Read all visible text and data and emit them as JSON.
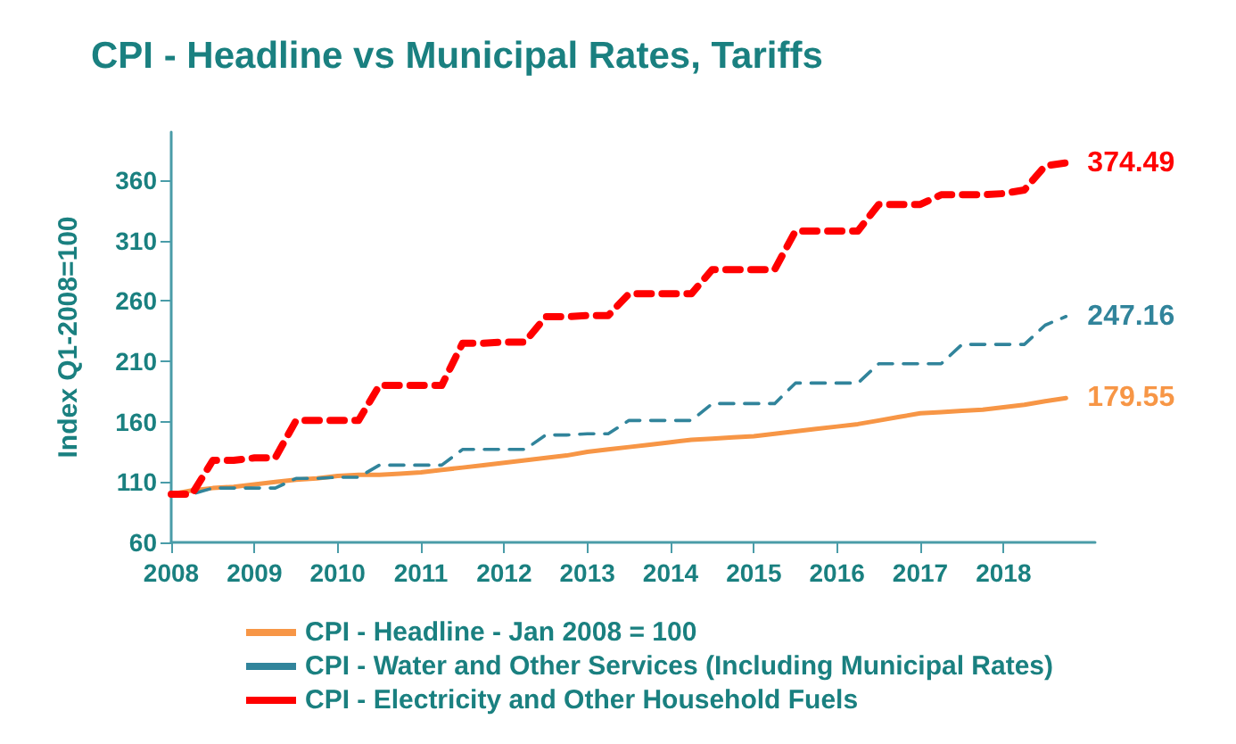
{
  "chart_data": {
    "type": "line",
    "title": "CPI - Headline vs Municipal Rates, Tariffs",
    "ylabel": "Index Q1-2008=100",
    "x": [
      2008,
      2008.25,
      2008.5,
      2008.75,
      2009,
      2009.25,
      2009.5,
      2009.75,
      2010,
      2010.25,
      2010.5,
      2010.75,
      2011,
      2011.25,
      2011.5,
      2011.75,
      2012,
      2012.25,
      2012.5,
      2012.75,
      2013,
      2013.25,
      2013.5,
      2013.75,
      2014,
      2014.25,
      2014.5,
      2014.75,
      2015,
      2015.25,
      2015.5,
      2015.75,
      2016,
      2016.25,
      2016.5,
      2016.75,
      2017,
      2017.25,
      2017.5,
      2017.75,
      2018,
      2018.25,
      2018.5,
      2018.75
    ],
    "series": [
      {
        "name": "CPI - Headline - Jan 2008 = 100",
        "color": "#f79646",
        "line_style": "solid",
        "values": [
          100,
          103,
          105,
          106,
          108,
          110,
          112,
          113,
          115,
          116,
          116,
          117,
          118,
          120,
          122,
          124,
          126,
          128,
          130,
          132,
          135,
          137,
          139,
          141,
          143,
          145,
          146,
          147,
          148,
          150,
          152,
          154,
          156,
          158,
          161,
          164,
          167,
          168,
          169,
          170,
          172,
          174,
          177,
          179.55
        ],
        "value_labels": [
          null,
          null,
          null,
          null,
          null,
          null,
          null,
          null,
          null,
          null,
          null,
          null,
          null,
          null,
          null,
          null,
          null,
          null,
          null,
          null,
          null,
          null,
          null,
          null,
          null,
          null,
          null,
          null,
          null,
          null,
          null,
          null,
          null,
          null,
          null,
          null,
          null,
          null,
          null,
          null,
          null,
          null,
          null,
          "179.55"
        ]
      },
      {
        "name": "CPI - Water and Other Services (Including Municipal Rates)",
        "color": "#31849b",
        "line_style": "dashed",
        "values": [
          100,
          100,
          105,
          105,
          105,
          105,
          113,
          113,
          114,
          114,
          124,
          124,
          124,
          124,
          137,
          137,
          137,
          137,
          149,
          149,
          150,
          150,
          161,
          161,
          161,
          161,
          175,
          175,
          175,
          175,
          192,
          192,
          192,
          192,
          208,
          208,
          208,
          208,
          224,
          224,
          224,
          224,
          240,
          247.16
        ],
        "value_labels": [
          null,
          null,
          null,
          null,
          null,
          null,
          null,
          null,
          null,
          null,
          null,
          null,
          null,
          null,
          null,
          null,
          null,
          null,
          null,
          null,
          null,
          null,
          null,
          null,
          null,
          null,
          null,
          null,
          null,
          null,
          null,
          null,
          null,
          null,
          null,
          null,
          null,
          null,
          null,
          null,
          null,
          null,
          null,
          "247.16"
        ]
      },
      {
        "name": "CPI - Electricity and Other Household Fuels",
        "color": "#ff0000",
        "line_style": "dashed",
        "values": [
          100,
          100,
          128,
          128,
          130,
          130,
          161,
          161,
          161,
          161,
          190,
          190,
          190,
          190,
          225,
          225,
          226,
          226,
          247,
          247,
          248,
          248,
          266,
          266,
          266,
          266,
          286,
          286,
          286,
          286,
          318,
          318,
          318,
          318,
          340,
          340,
          340,
          348,
          348,
          348,
          349,
          352,
          372,
          374.49
        ],
        "value_labels": [
          null,
          null,
          null,
          null,
          null,
          null,
          null,
          null,
          null,
          null,
          null,
          null,
          null,
          null,
          null,
          null,
          null,
          null,
          null,
          null,
          null,
          null,
          null,
          null,
          null,
          null,
          null,
          null,
          null,
          null,
          null,
          null,
          null,
          null,
          null,
          null,
          null,
          null,
          null,
          null,
          null,
          null,
          null,
          "374.49"
        ]
      }
    ],
    "xlim": [
      2008,
      2019.1
    ],
    "xticks": [
      2008,
      2009,
      2010,
      2011,
      2012,
      2013,
      2014,
      2015,
      2016,
      2017,
      2018
    ],
    "ylim": [
      60,
      400
    ],
    "yticks": [
      60,
      110,
      160,
      210,
      260,
      310,
      360
    ],
    "grid": false,
    "legend": "bottom",
    "marker": "none"
  }
}
